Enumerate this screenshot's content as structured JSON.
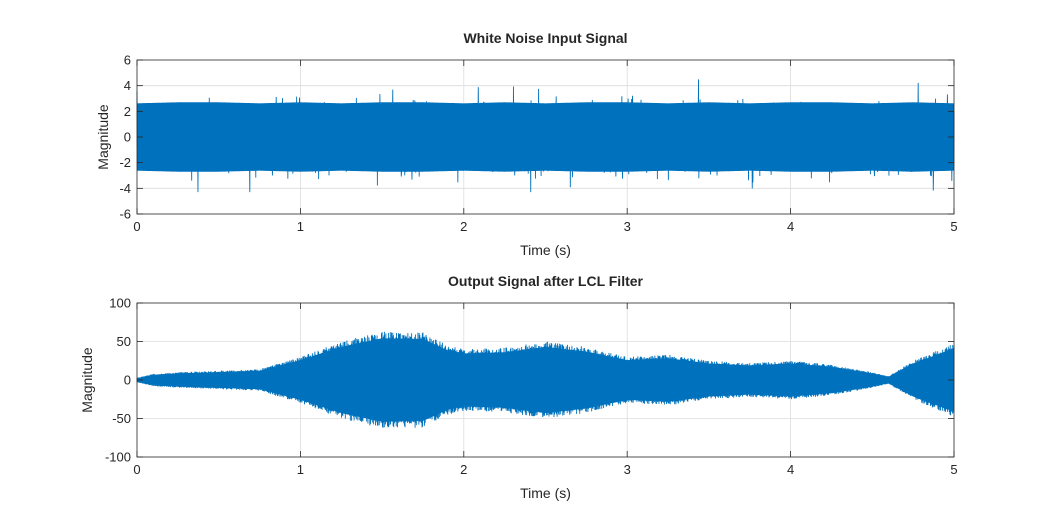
{
  "chart_data": [
    {
      "type": "line",
      "title": "White Noise Input Signal",
      "xlabel": "Time (s)",
      "ylabel": "Magnitude",
      "xlim": [
        0,
        5
      ],
      "ylim": [
        -6,
        6
      ],
      "xticks": [
        0,
        1,
        2,
        3,
        4,
        5
      ],
      "yticks": [
        -6,
        -4,
        -2,
        0,
        2,
        4,
        6
      ],
      "grid": true,
      "color": "#0072BD",
      "series": [
        {
          "description_of_shape": "dense white noise centered at 0",
          "envelope_time": [
            0,
            0.25,
            0.5,
            0.75,
            1.0,
            1.25,
            1.5,
            1.75,
            2.0,
            2.25,
            2.5,
            2.75,
            3.0,
            3.25,
            3.5,
            3.75,
            4.0,
            4.25,
            4.5,
            4.75,
            5.0
          ],
          "envelope_upper": [
            3.2,
            3.3,
            3.3,
            3.2,
            3.3,
            3.2,
            3.3,
            3.3,
            3.2,
            3.3,
            3.2,
            3.3,
            3.3,
            3.2,
            3.3,
            3.2,
            3.3,
            3.3,
            3.2,
            3.3,
            3.2
          ],
          "envelope_lower": [
            -3.2,
            -3.3,
            -3.3,
            -3.2,
            -3.3,
            -3.2,
            -3.3,
            -3.3,
            -3.2,
            -3.3,
            -3.2,
            -3.3,
            -3.3,
            -3.2,
            -3.3,
            -3.2,
            -3.3,
            -3.3,
            -3.2,
            -3.3,
            -3.2
          ],
          "peak_max": 4.5,
          "peak_min": -4.3
        }
      ]
    },
    {
      "type": "line",
      "title": "Output Signal after LCL Filter",
      "xlabel": "Time (s)",
      "ylabel": "Magnitude",
      "xlim": [
        0,
        5
      ],
      "ylim": [
        -100,
        100
      ],
      "xticks": [
        0,
        1,
        2,
        3,
        4,
        5
      ],
      "yticks": [
        -100,
        -50,
        0,
        50,
        100
      ],
      "grid": true,
      "color": "#0072BD",
      "series": [
        {
          "envelope_time": [
            0,
            0.1,
            0.25,
            0.5,
            0.75,
            1.0,
            1.25,
            1.5,
            1.75,
            1.9,
            2.0,
            2.25,
            2.5,
            2.75,
            3.0,
            3.25,
            3.5,
            3.75,
            4.0,
            4.25,
            4.5,
            4.6,
            4.75,
            5.0
          ],
          "envelope_upper": [
            3,
            8,
            10,
            12,
            14,
            30,
            50,
            63,
            62,
            45,
            40,
            42,
            50,
            43,
            30,
            33,
            25,
            22,
            25,
            20,
            10,
            5,
            25,
            48
          ],
          "envelope_lower": [
            -3,
            -8,
            -10,
            -12,
            -14,
            -30,
            -50,
            -63,
            -62,
            -45,
            -40,
            -42,
            -50,
            -43,
            -30,
            -33,
            -25,
            -22,
            -25,
            -20,
            -10,
            -5,
            -25,
            -48
          ]
        }
      ]
    }
  ]
}
